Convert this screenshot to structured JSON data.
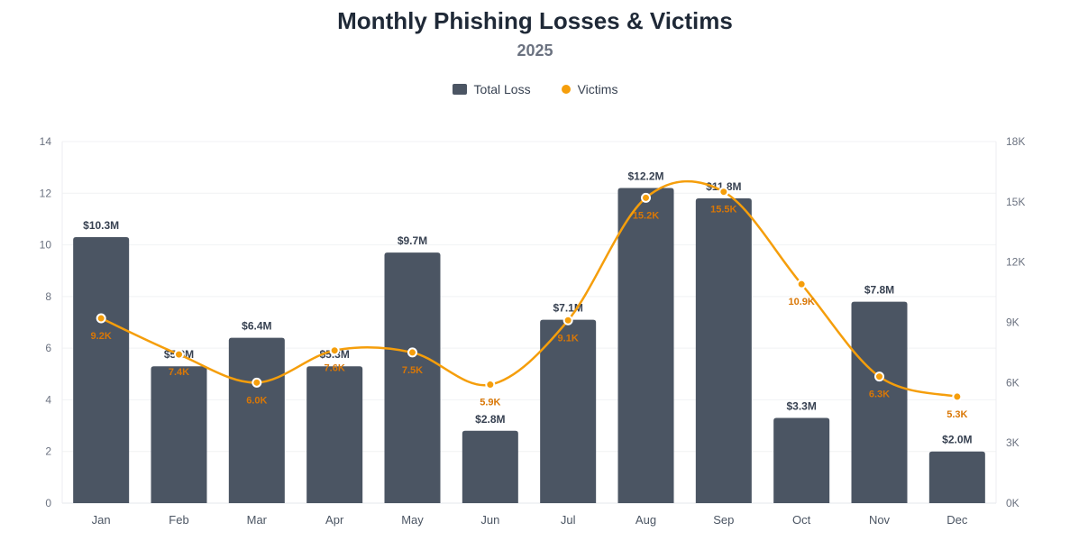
{
  "chart_data": {
    "type": "bar",
    "title": "Monthly Phishing Losses & Victims",
    "subtitle": "2025",
    "categories": [
      "Jan",
      "Feb",
      "Mar",
      "Apr",
      "May",
      "Jun",
      "Jul",
      "Aug",
      "Sep",
      "Oct",
      "Nov",
      "Dec"
    ],
    "series": [
      {
        "name": "Total Loss",
        "type": "bar",
        "axis": "left",
        "color": "#4b5563",
        "values": [
          10.3,
          5.3,
          6.4,
          5.3,
          9.7,
          2.8,
          7.1,
          12.2,
          11.8,
          3.3,
          7.8,
          2.0
        ],
        "labels": [
          "$10.3M",
          "$5.3M",
          "$6.4M",
          "$5.3M",
          "$9.7M",
          "$2.8M",
          "$7.1M",
          "$12.2M",
          "$11.8M",
          "$3.3M",
          "$7.8M",
          "$2.0M"
        ]
      },
      {
        "name": "Victims",
        "type": "line",
        "axis": "right",
        "color": "#f59e0b",
        "values": [
          9200,
          7400,
          6000,
          7600,
          7500,
          5900,
          9100,
          15200,
          15500,
          10900,
          6300,
          5300
        ],
        "labels": [
          "9.2K",
          "7.4K",
          "6.0K",
          "7.6K",
          "7.5K",
          "5.9K",
          "9.1K",
          "15.2K",
          "15.5K",
          "10.9K",
          "6.3K",
          "5.3K"
        ]
      }
    ],
    "y_left": {
      "range": [
        0,
        14
      ],
      "ticks": [
        "0",
        "2",
        "4",
        "6",
        "8",
        "10",
        "12",
        "14"
      ]
    },
    "y_right": {
      "range": [
        0,
        18000
      ],
      "ticks": [
        "0K",
        "3K",
        "6K",
        "9K",
        "12K",
        "15K",
        "18K"
      ]
    },
    "grid": true,
    "legend_position": "top-center"
  }
}
